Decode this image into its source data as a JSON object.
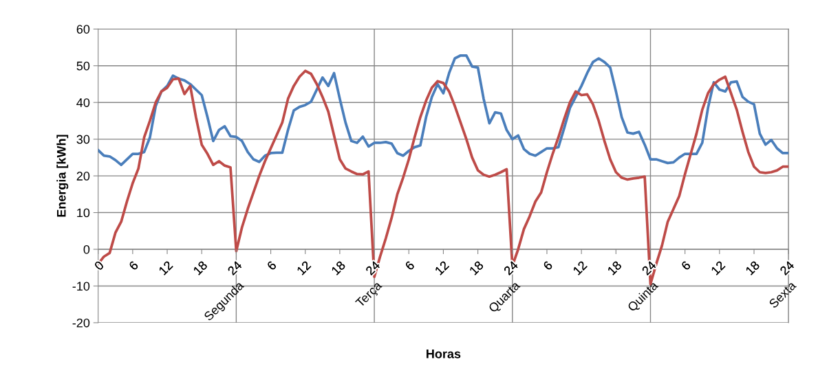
{
  "chart_data": {
    "type": "line",
    "xlabel": "Horas",
    "ylabel": "Energia [kWh]",
    "categories": [
      "0",
      null,
      null,
      null,
      null,
      null,
      "6",
      null,
      null,
      null,
      null,
      null,
      "12",
      null,
      null,
      null,
      null,
      null,
      "18",
      null,
      null,
      null,
      null,
      null,
      "24",
      null,
      null,
      null,
      null,
      null,
      "6",
      null,
      null,
      null,
      null,
      null,
      "12",
      null,
      null,
      null,
      null,
      null,
      "18",
      null,
      null,
      null,
      null,
      null,
      "24",
      null,
      null,
      null,
      null,
      null,
      "6",
      null,
      null,
      null,
      null,
      null,
      "12",
      null,
      null,
      null,
      null,
      null,
      "18",
      null,
      null,
      null,
      null,
      null,
      "24",
      null,
      null,
      null,
      null,
      null,
      "6",
      null,
      null,
      null,
      null,
      null,
      "12",
      null,
      null,
      null,
      null,
      null,
      "18",
      null,
      null,
      null,
      null,
      null,
      "24",
      null,
      null,
      null,
      null,
      null,
      "6",
      null,
      null,
      null,
      null,
      null,
      "12",
      null,
      null,
      null,
      null,
      null,
      "18",
      null,
      null,
      null,
      null,
      null,
      "24"
    ],
    "series": [
      {
        "color": "#4a7ebb",
        "values": [
          27,
          25.5,
          25.3,
          24.3,
          23,
          24.5,
          26,
          26,
          26.5,
          30.5,
          39,
          43,
          44.5,
          47.3,
          46.5,
          46,
          45,
          43.5,
          42,
          36,
          29.5,
          32.5,
          33.5,
          30.8,
          30.6,
          29.5,
          26.5,
          24.5,
          23.8,
          25.5,
          26.2,
          26.3,
          26.3,
          32.5,
          37.8,
          38.8,
          39.3,
          40.2,
          43.5,
          46.8,
          44.5,
          48,
          41,
          34.5,
          29.5,
          29,
          30.7,
          28,
          29,
          29,
          29.2,
          28.8,
          26.2,
          25.5,
          26.8,
          27.8,
          28.3,
          36,
          41.5,
          45,
          42.5,
          48,
          52,
          52.8,
          52.8,
          49.8,
          49.5,
          41,
          34.3,
          37.3,
          37,
          32.5,
          30,
          31,
          27.3,
          26,
          25.5,
          26.5,
          27.5,
          27.5,
          27.8,
          33,
          38.5,
          41.5,
          44.5,
          48,
          51,
          52,
          51,
          49.5,
          43,
          36,
          31.8,
          31.5,
          32,
          28.5,
          24.5,
          24.5,
          24,
          23.5,
          23.7,
          25,
          26,
          26,
          26,
          29,
          38.5,
          45.5,
          43.5,
          43,
          45.5,
          45.7,
          41.5,
          40.2,
          39.5,
          31.5,
          28.5,
          29.8,
          27.5,
          26.2,
          26.2
        ]
      },
      {
        "color": "#be4b48",
        "values": [
          -4,
          -2,
          -1,
          4.5,
          7.5,
          13,
          18,
          22,
          30.5,
          35,
          40,
          43,
          44,
          46.3,
          46.5,
          42.3,
          44.5,
          36,
          28.5,
          26,
          23,
          24,
          22.8,
          22.3,
          -0.5,
          6,
          11,
          15.5,
          20,
          24,
          27.5,
          31,
          34.5,
          41,
          44.5,
          47,
          48.6,
          47.8,
          45,
          41.5,
          37.5,
          31,
          24.5,
          22,
          21.2,
          20.5,
          20.4,
          21.2,
          -7.5,
          -2,
          3,
          8.5,
          15,
          19.5,
          24.5,
          30.5,
          36,
          40.5,
          44,
          45.8,
          45.3,
          43,
          39,
          34.5,
          30,
          25,
          21.5,
          20.3,
          19.8,
          20.3,
          21,
          21.8,
          -4.5,
          0,
          5.5,
          9,
          13,
          15.5,
          21,
          26,
          30.5,
          35.5,
          40,
          43,
          42,
          42.2,
          39.5,
          35,
          29.5,
          24.5,
          21,
          19.5,
          19,
          19.3,
          19.5,
          19.8,
          -9.5,
          -4,
          1,
          7.5,
          11,
          14.5,
          20.5,
          26,
          31.5,
          38,
          42.5,
          45,
          46.2,
          47,
          42.5,
          38,
          32,
          26.5,
          22.5,
          21,
          20.8,
          21,
          21.5,
          22.5,
          22.5
        ]
      }
    ],
    "annotations": [
      "Segunda",
      "Terça",
      "Quarta",
      "Quinta",
      "Sexta"
    ],
    "ylim": [
      -20,
      60
    ],
    "yticks": [
      -20,
      -10,
      0,
      10,
      20,
      30,
      40,
      50,
      60
    ],
    "grid": true,
    "legend": false,
    "marker": "none",
    "line_style": "solid"
  }
}
